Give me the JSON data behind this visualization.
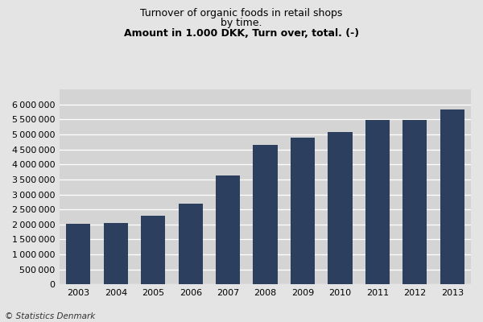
{
  "title_line1": "Turnover of organic foods in retail shops",
  "title_line2": "by time.",
  "title_line3": "Amount in 1.000 DKK, Turn over, total. (-)",
  "years": [
    "2003",
    "2004",
    "2005",
    "2006",
    "2007",
    "2008",
    "2009",
    "2010",
    "2011",
    "2012",
    "2013"
  ],
  "values": [
    2020000,
    2060000,
    2290000,
    2700000,
    3620000,
    4640000,
    4880000,
    5080000,
    5470000,
    5470000,
    5820000
  ],
  "bar_color": "#2d3f5e",
  "background_color": "#e4e4e4",
  "plot_bg_color": "#d4d4d4",
  "ylim": [
    0,
    6500000
  ],
  "ytick_step": 500000,
  "footer_text": "© Statistics Denmark",
  "title_fontsize": 9,
  "tick_fontsize": 8,
  "footer_fontsize": 7.5
}
